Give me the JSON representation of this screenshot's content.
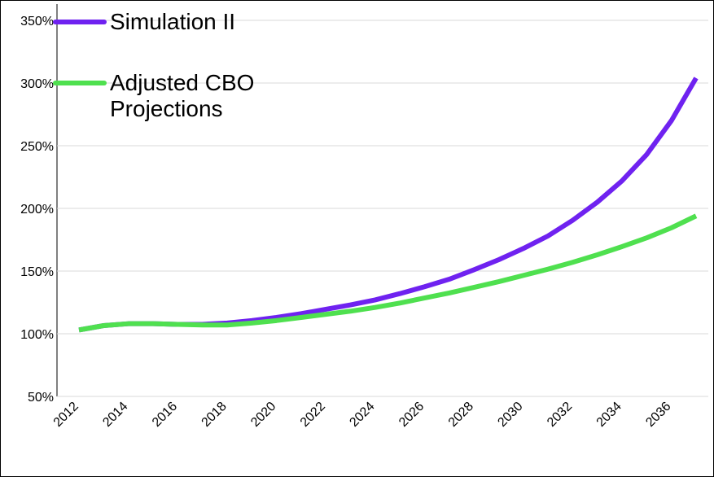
{
  "chart_data": {
    "type": "line",
    "categories": [
      "2012",
      null,
      "2014",
      null,
      "2016",
      null,
      "2018",
      null,
      "2020",
      null,
      "2022",
      null,
      "2024",
      null,
      "2026",
      null,
      "2028",
      null,
      "2030",
      null,
      "2032",
      null,
      "2034",
      null,
      "2036",
      null
    ],
    "series": [
      {
        "name": "Simulation II",
        "color": "#6f22f0",
        "values": [
          103,
          106.5,
          108,
          108,
          107.5,
          107.5,
          108.5,
          110.5,
          113,
          116,
          119.5,
          123,
          127,
          132,
          137.5,
          143.5,
          151,
          159,
          168,
          178,
          190.5,
          205,
          222,
          243,
          270,
          304
        ]
      },
      {
        "name": "Adjusted CBO Projections",
        "color": "#4fe04f",
        "values": [
          103,
          106.5,
          108,
          108,
          107.5,
          107,
          107,
          108.5,
          110.5,
          113,
          115.5,
          118,
          121,
          124.5,
          128.5,
          132.5,
          137,
          141.5,
          146.5,
          151.5,
          157,
          163,
          169.5,
          176.5,
          184.5,
          194
        ]
      }
    ],
    "ylim": [
      50,
      350
    ],
    "yticks": [
      {
        "value": 50,
        "label": "50%"
      },
      {
        "value": 100,
        "label": "100%"
      },
      {
        "value": 150,
        "label": "150%"
      },
      {
        "value": 200,
        "label": "200%"
      },
      {
        "value": 250,
        "label": "250%"
      },
      {
        "value": 300,
        "label": "300%"
      },
      {
        "value": 350,
        "label": "350%"
      }
    ],
    "grid": true,
    "legend": "top-left"
  }
}
